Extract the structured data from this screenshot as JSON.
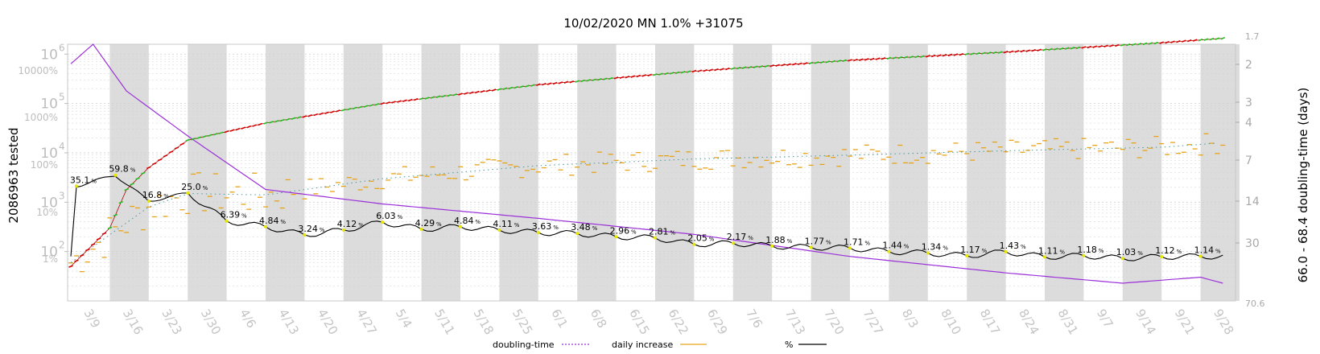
{
  "chart_data": {
    "type": "line",
    "title": "10/02/2020 MN 1.0% +31075",
    "ylabel_left": "2086963 tested",
    "ylabel_right": "66.0 - 68.4 doubling-time (days)",
    "left_ticks_count": [
      {
        "label": "10",
        "exp": "6",
        "value": 1000000
      },
      {
        "label": "10",
        "exp": "5",
        "value": 100000
      },
      {
        "label": "10",
        "exp": "4",
        "value": 10000
      },
      {
        "label": "10",
        "exp": "3",
        "value": 1000
      },
      {
        "label": "10",
        "exp": "2",
        "value": 100
      }
    ],
    "left_ticks_pct": [
      {
        "label": "10000%",
        "value": 10000
      },
      {
        "label": "1000%",
        "value": 1000
      },
      {
        "label": "100%",
        "value": 100
      },
      {
        "label": "10%",
        "value": 10
      },
      {
        "label": "1%",
        "value": 1
      }
    ],
    "right_ticks": [
      {
        "label": "1.7",
        "small": true
      },
      {
        "label": "2"
      },
      {
        "label": "3"
      },
      {
        "label": "4"
      },
      {
        "label": "7"
      },
      {
        "label": "14"
      },
      {
        "label": "30"
      },
      {
        "label": "70.6",
        "small": true
      }
    ],
    "x_ticks": [
      "3/9",
      "3/16",
      "3/23",
      "3/30",
      "4/6",
      "4/13",
      "4/20",
      "4/27",
      "5/4",
      "5/11",
      "5/18",
      "5/25",
      "6/1",
      "6/8",
      "6/15",
      "6/22",
      "6/29",
      "7/6",
      "7/13",
      "7/20",
      "7/27",
      "8/3",
      "8/10",
      "8/17",
      "8/24",
      "8/31",
      "9/7",
      "9/14",
      "9/21",
      "9/28"
    ],
    "pct_annotations": [
      {
        "day": 1,
        "value": "35.1"
      },
      {
        "day": 8,
        "value": "59.8"
      },
      {
        "day": 14,
        "value": "16.8"
      },
      {
        "day": 21,
        "value": "25.0"
      },
      {
        "day": 28,
        "value": "6.39"
      },
      {
        "day": 35,
        "value": "4.84"
      },
      {
        "day": 42,
        "value": "3.24"
      },
      {
        "day": 49,
        "value": "4.12"
      },
      {
        "day": 56,
        "value": "6.03"
      },
      {
        "day": 63,
        "value": "4.29"
      },
      {
        "day": 70,
        "value": "4.84"
      },
      {
        "day": 77,
        "value": "4.11"
      },
      {
        "day": 84,
        "value": "3.63"
      },
      {
        "day": 91,
        "value": "3.48"
      },
      {
        "day": 98,
        "value": "2.96"
      },
      {
        "day": 105,
        "value": "2.81"
      },
      {
        "day": 112,
        "value": "2.05"
      },
      {
        "day": 119,
        "value": "2.17"
      },
      {
        "day": 126,
        "value": "1.88"
      },
      {
        "day": 133,
        "value": "1.77"
      },
      {
        "day": 140,
        "value": "1.71"
      },
      {
        "day": 147,
        "value": "1.44"
      },
      {
        "day": 154,
        "value": "1.34"
      },
      {
        "day": 161,
        "value": "1.17"
      },
      {
        "day": 168,
        "value": "1.43"
      },
      {
        "day": 175,
        "value": "1.11"
      },
      {
        "day": 182,
        "value": "1.18"
      },
      {
        "day": 189,
        "value": "1.03"
      },
      {
        "day": 196,
        "value": "1.12"
      },
      {
        "day": 203,
        "value": "1.14"
      }
    ],
    "series": [
      {
        "name": "doubling-time",
        "color": "#9b30d9",
        "style": "dotted"
      },
      {
        "name": "daily increase",
        "color": "#e8a317",
        "style": "solid"
      },
      {
        "name": "%",
        "color": "#000000",
        "style": "solid"
      }
    ],
    "cumulative_tested": [
      {
        "day": 0,
        "value": 50
      },
      {
        "day": 7,
        "value": 300
      },
      {
        "day": 10,
        "value": 1800
      },
      {
        "day": 14,
        "value": 5000
      },
      {
        "day": 21,
        "value": 18000
      },
      {
        "day": 35,
        "value": 40000
      },
      {
        "day": 56,
        "value": 100000
      },
      {
        "day": 84,
        "value": 240000
      },
      {
        "day": 112,
        "value": 450000
      },
      {
        "day": 140,
        "value": 750000
      },
      {
        "day": 168,
        "value": 1100000
      },
      {
        "day": 196,
        "value": 1700000
      },
      {
        "day": 207,
        "value": 2086963
      }
    ],
    "daily_increase_trend": [
      {
        "day": 0,
        "value": 60
      },
      {
        "day": 14,
        "value": 800
      },
      {
        "day": 21,
        "value": 1500
      },
      {
        "day": 35,
        "value": 1400
      },
      {
        "day": 56,
        "value": 3000
      },
      {
        "day": 84,
        "value": 5500
      },
      {
        "day": 112,
        "value": 7500
      },
      {
        "day": 140,
        "value": 9000
      },
      {
        "day": 168,
        "value": 11000
      },
      {
        "day": 196,
        "value": 13000
      },
      {
        "day": 207,
        "value": 16000
      }
    ],
    "doubling_time_days": [
      {
        "day": 0,
        "value": 2.3
      },
      {
        "day": 4,
        "value": 1.7
      },
      {
        "day": 10,
        "value": 3.5
      },
      {
        "day": 21,
        "value": 7
      },
      {
        "day": 35,
        "value": 16
      },
      {
        "day": 56,
        "value": 20
      },
      {
        "day": 84,
        "value": 25
      },
      {
        "day": 112,
        "value": 32
      },
      {
        "day": 140,
        "value": 45
      },
      {
        "day": 168,
        "value": 58
      },
      {
        "day": 189,
        "value": 68
      },
      {
        "day": 203,
        "value": 62
      },
      {
        "day": 207,
        "value": 68
      }
    ],
    "grid": true,
    "weekend_shading": true,
    "legend_position": "bottom"
  }
}
